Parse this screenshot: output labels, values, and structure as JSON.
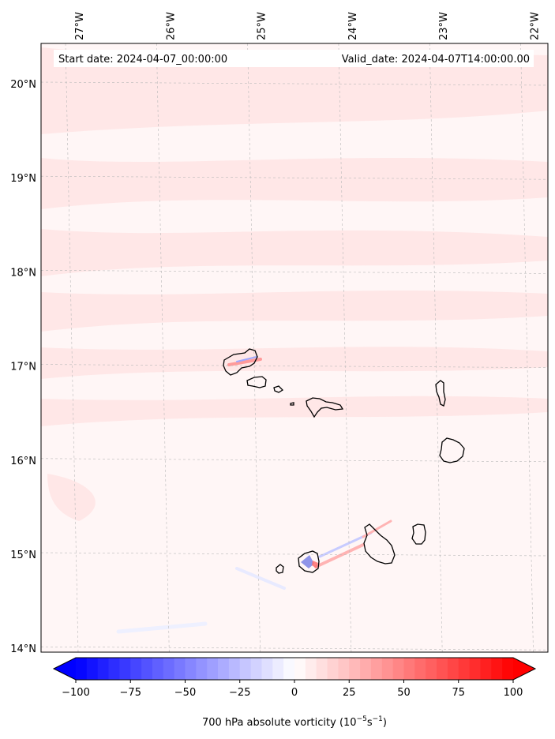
{
  "header": {
    "start_label": "Start date: 2024-04-07_00:00:00",
    "valid_label": "Valid_date: 2024-04-07T14:00:00.00"
  },
  "map": {
    "lon_range": [
      -27.35,
      -21.75
    ],
    "lat_range": [
      13.95,
      20.45
    ],
    "lon_ticks": [
      {
        "value": -27,
        "label": "27°W"
      },
      {
        "value": -26,
        "label": "26°W"
      },
      {
        "value": -25,
        "label": "25°W"
      },
      {
        "value": -24,
        "label": "24°W"
      },
      {
        "value": -23,
        "label": "23°W"
      },
      {
        "value": -22,
        "label": "22°W"
      }
    ],
    "lat_ticks": [
      {
        "value": 20,
        "label": "20°N"
      },
      {
        "value": 19,
        "label": "19°N"
      },
      {
        "value": 18,
        "label": "18°N"
      },
      {
        "value": 17,
        "label": "17°N"
      },
      {
        "value": 16,
        "label": "16°N"
      },
      {
        "value": 15,
        "label": "15°N"
      },
      {
        "value": 14,
        "label": "14°N"
      }
    ],
    "gridlines": true,
    "background_color": "#fff6f6",
    "field_tint_color": "#ffe6e6",
    "coastline_color": "#000000"
  },
  "colorbar": {
    "min": -100,
    "max": 100,
    "step": 5,
    "extend": "both",
    "low_color": "#0000ff",
    "mid_color": "#ffffff",
    "high_color": "#ff0000",
    "ticks": [
      {
        "value": -100,
        "label": "−100"
      },
      {
        "value": -75,
        "label": "−75"
      },
      {
        "value": -50,
        "label": "−50"
      },
      {
        "value": -25,
        "label": "−25"
      },
      {
        "value": 0,
        "label": "0"
      },
      {
        "value": 25,
        "label": "25"
      },
      {
        "value": 50,
        "label": "50"
      },
      {
        "value": 75,
        "label": "75"
      },
      {
        "value": 100,
        "label": "100"
      }
    ],
    "label_text": "700 hPa absolute vorticity (",
    "label_unit_a": "10",
    "label_exp_a": "−5",
    "label_unit_b": "s",
    "label_exp_b": "−1",
    "label_close": ")"
  }
}
